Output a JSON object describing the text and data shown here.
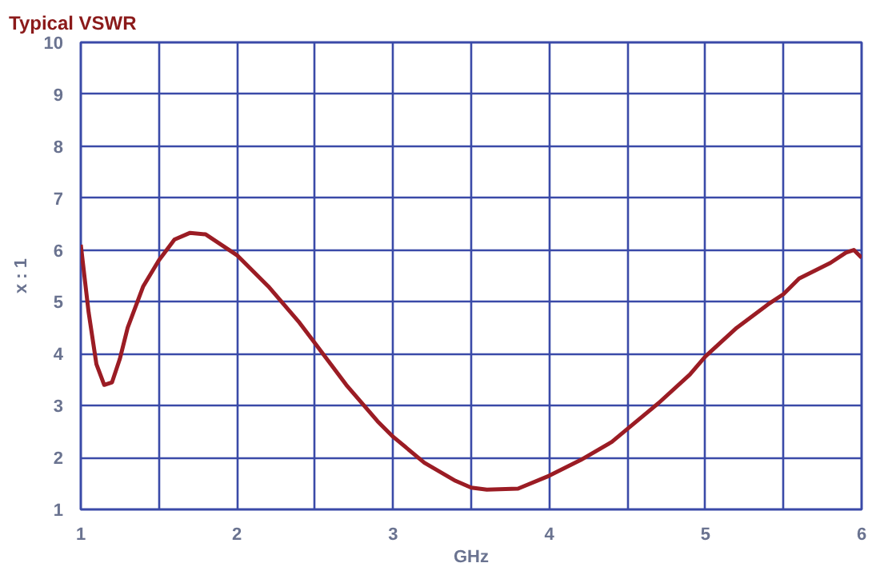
{
  "chart_data": {
    "type": "line",
    "title": "Typical VSWR",
    "xlabel": "GHz",
    "ylabel": "x : 1",
    "x": [
      1,
      1.05,
      1.1,
      1.15,
      1.2,
      1.25,
      1.3,
      1.4,
      1.5,
      1.6,
      1.7,
      1.8,
      1.9,
      2,
      2.2,
      2.4,
      2.5,
      2.7,
      2.9,
      3,
      3.2,
      3.4,
      3.5,
      3.6,
      3.8,
      4,
      4.2,
      4.4,
      4.5,
      4.7,
      4.9,
      5,
      5.2,
      5.4,
      5.5,
      5.6,
      5.7,
      5.8,
      5.9,
      5.95,
      6
    ],
    "series": [
      {
        "color": "#9b1c24",
        "values": [
          6.1,
          4.8,
          3.8,
          3.4,
          3.45,
          3.9,
          4.5,
          5.3,
          5.8,
          6.2,
          6.33,
          6.3,
          6.1,
          5.9,
          5.3,
          4.6,
          4.2,
          3.4,
          2.7,
          2.4,
          1.9,
          1.55,
          1.42,
          1.38,
          1.4,
          1.65,
          1.95,
          2.3,
          2.55,
          3.05,
          3.6,
          3.95,
          4.5,
          4.95,
          5.15,
          5.45,
          5.6,
          5.75,
          5.95,
          6.0,
          5.85
        ]
      }
    ],
    "xlim": [
      1,
      6
    ],
    "ylim": [
      1,
      10
    ],
    "xticks": [
      1,
      {
        "value": 1.5,
        "label": null
      },
      2,
      {
        "value": 2.5,
        "label": null
      },
      3,
      {
        "value": 3.5,
        "label": null
      },
      4,
      {
        "value": 4.5,
        "label": null
      },
      5,
      {
        "value": 5.5,
        "label": null
      },
      6
    ],
    "yticks": [
      1,
      2,
      3,
      4,
      5,
      6,
      7,
      8,
      9,
      10
    ],
    "grid": true,
    "marker": "none",
    "line_style": "solid"
  }
}
